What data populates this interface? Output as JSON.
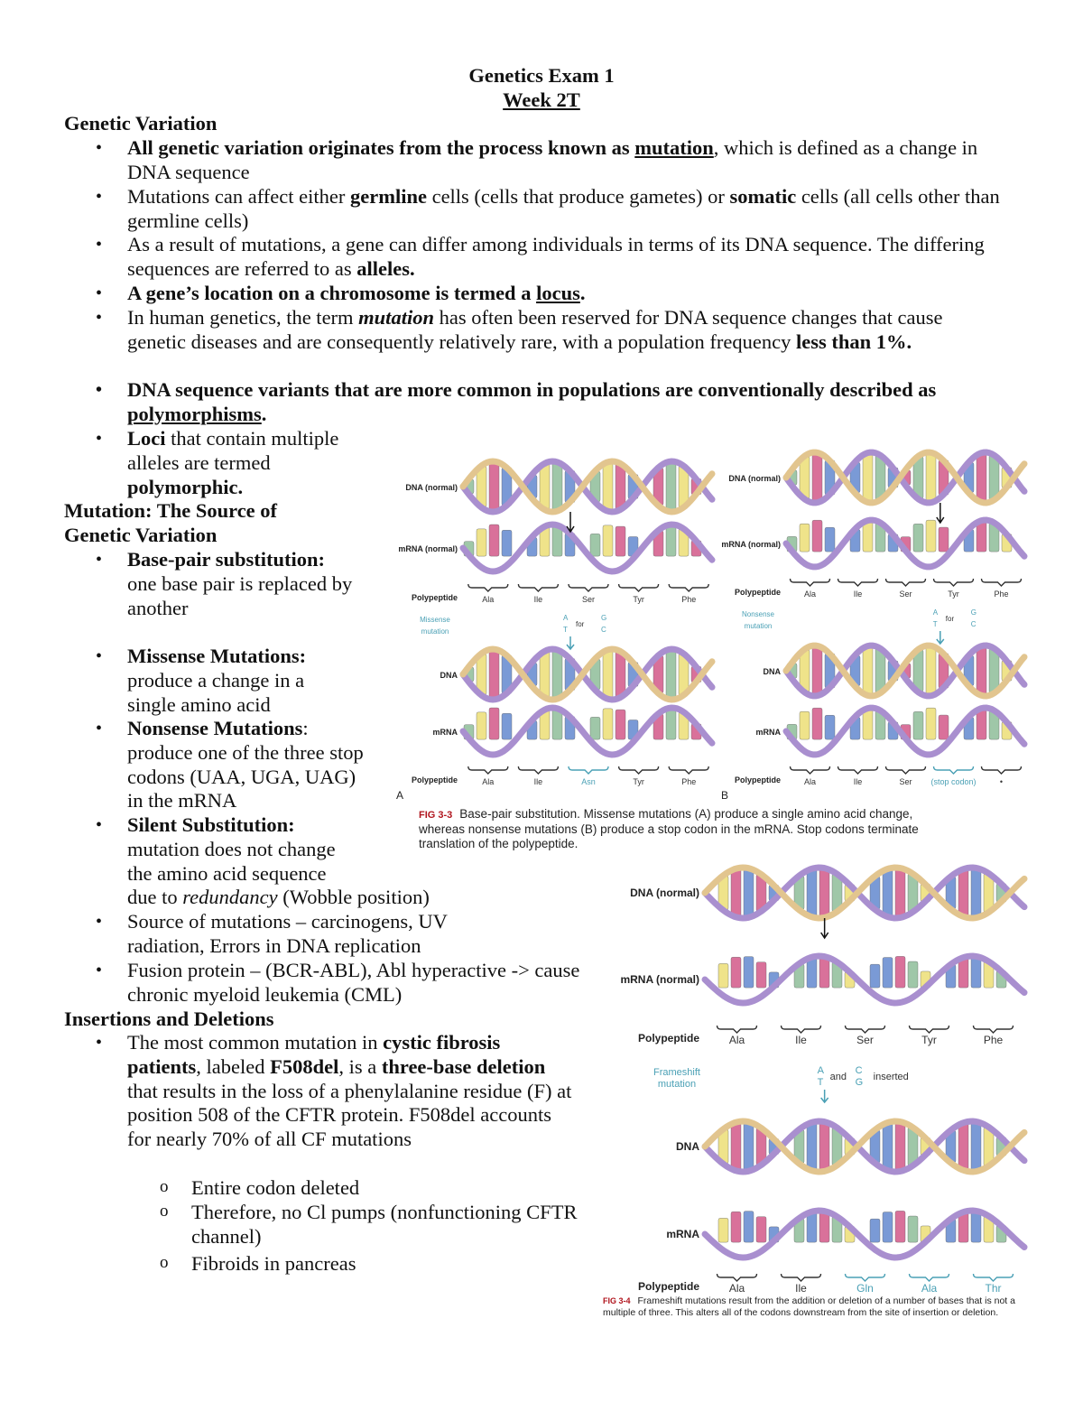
{
  "header": {
    "title": "Genetics Exam 1",
    "subtitle": "Week 2T"
  },
  "section1": {
    "heading": "Genetic Variation",
    "b1": {
      "bold": "All genetic variation originates from the process known as ",
      "boldu": "mutation",
      "rest": ", which is defined as a change in DNA sequence"
    },
    "b2": {
      "a": "Mutations can affect either ",
      "b1": "germline",
      "c": " cells (cells that produce gametes) or ",
      "b2": "somatic",
      "d": " cells (all cells other than germline cells)"
    },
    "b3": {
      "a": "As a result of mutations, a gene can differ among individuals in terms of its DNA sequence. The differing sequences are referred to as ",
      "b": "alleles."
    },
    "b4": {
      "a": "A gene’s location on a chromosome is termed a ",
      "u": "locus",
      "c": "."
    },
    "b5": {
      "a": "In human genetics, the term ",
      "bi": "mutation",
      "c": " has often been reserved for DNA sequence changes that cause genetic diseases and are consequently relatively rare, with a population frequency ",
      "b": "less than 1%."
    },
    "b6": {
      "a": "DNA sequence variants that are more common in populations are conventionally described as ",
      "u": "polymorphisms",
      "c": "."
    },
    "b7": {
      "b1": "Loci",
      "a": " that contain multiple alleles are termed ",
      "b2": "polymorphic."
    }
  },
  "section2": {
    "heading": "Mutation: The Source of Genetic Variation",
    "b1": {
      "b": "Base-pair substitution:",
      "a": " one base pair is replaced by another"
    },
    "b2": {
      "b": "Missense Mutations:",
      "a": " produce a change in a single amino acid"
    },
    "b3": {
      "b": "Nonsense Mutations",
      "a": ": produce one of the three stop codons (UAA, UGA, UAG) in the mRNA"
    },
    "b4": {
      "b": "Silent Substitution:",
      "a": " mutation does not change the amino acid sequence due to ",
      "i": "redundancy",
      "c": " (Wobble position)"
    },
    "b5": "Source of mutations – carcinogens, UV radiation, Errors in DNA replication",
    "b6": "Fusion protein – (BCR-ABL), Abl hyperactive -> cause chronic myeloid leukemia (CML)"
  },
  "section3": {
    "heading": "Insertions and Deletions",
    "b1": {
      "a": "The most common mutation in ",
      "b1": "cystic fibrosis patients",
      "c": ", labeled ",
      "b2": "F508del",
      "d": ", is a ",
      "b3": "three-base deletion",
      "e": " that results in the loss of a phenylalanine residue (F) at position 508 of the CFTR protein. F508del accounts for nearly 70% of all CF mutations"
    },
    "subs": [
      "Entire codon deleted",
      "Therefore, no Cl pumps (nonfunctioning CFTR channel)",
      "Fibroids in pancreas"
    ]
  },
  "figures": {
    "colors": {
      "strand1": "#a98fcf",
      "strand2": "#e2c58f",
      "A": "#d9719a",
      "T": "#7a9ad6",
      "G": "#9fc7a8",
      "C": "#efe38a",
      "U": "#6f8fd8",
      "mut": "#4aa0b5"
    },
    "fig33": {
      "label": "FIG 3-3",
      "caption": "Base-pair substitution. Missense mutations (A) produce a single amino acid change, whereas nonsense mutations (B) produce a stop codon in the mRNA. Stop codons terminate translation of the polypeptide.",
      "panelA": {
        "letter": "A",
        "dna_normal": "DNA (normal)",
        "mrna_normal": "mRNA (normal)",
        "polypeptide": "Polypeptide",
        "aa1": [
          "Ala",
          "Ile",
          "Ser",
          "Tyr",
          "Phe"
        ],
        "mutation": "Missense mutation",
        "change": [
          "A",
          "T",
          "for",
          "G",
          "C"
        ],
        "dna": "DNA",
        "mrna": "mRNA",
        "aa2": [
          "Ala",
          "Ile",
          "Asn",
          "Tyr",
          "Phe"
        ]
      },
      "panelB": {
        "letter": "B",
        "dna_normal": "DNA (normal)",
        "mrna_normal": "mRNA (normal)",
        "polypeptide": "Polypeptide",
        "aa1": [
          "Ala",
          "Ile",
          "Ser",
          "Tyr",
          "Phe"
        ],
        "mutation": "Nonsense mutation",
        "change": [
          "A",
          "T",
          "for",
          "G",
          "C"
        ],
        "dna": "DNA",
        "mrna": "mRNA",
        "aa2": [
          "Ala",
          "Ile",
          "Ser",
          "(stop codon)",
          "•"
        ]
      }
    },
    "fig34": {
      "label": "FIG 3-4",
      "caption": "Frameshift mutations result from the addition or deletion of a number of bases that is not a multiple of three. This alters all of the codons downstream from the site of insertion or deletion.",
      "dna_normal": "DNA (normal)",
      "mrna_normal": "mRNA (normal)",
      "polypeptide": "Polypeptide",
      "aa1": [
        "Ala",
        "Ile",
        "Ser",
        "Tyr",
        "Phe"
      ],
      "mutation": "Frameshift mutation",
      "change": [
        "A",
        "T",
        "and",
        "C",
        "G",
        "inserted"
      ],
      "dna": "DNA",
      "mrna": "mRNA",
      "aa2": [
        "Ala",
        "Ile",
        "Gln",
        "Ala",
        "Thr"
      ]
    }
  }
}
